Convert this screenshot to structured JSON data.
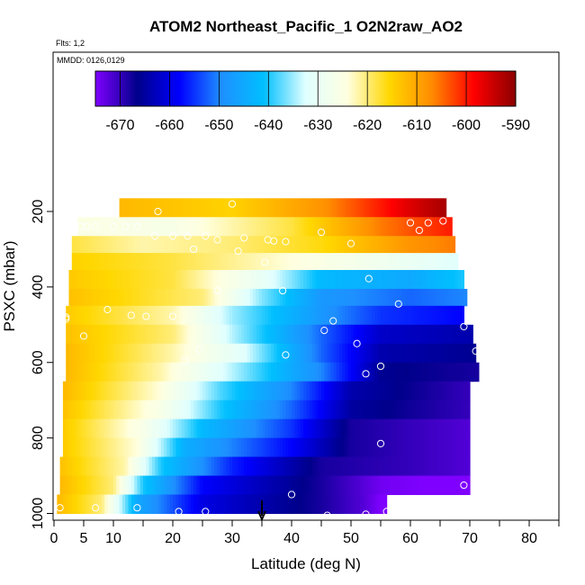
{
  "chart_data": {
    "type": "heatmap",
    "title": "ATOM2 Northeast_Pacific_1 O2N2raw_AO2",
    "flights_label": "Flts: 1,2",
    "dates_label": "MMDD: 0126,0129",
    "xlabel": "Latitude (deg N)",
    "ylabel": "PSXC (mbar)",
    "xlim": [
      0,
      85
    ],
    "ylim": [
      1000,
      120
    ],
    "y_reversed": true,
    "x_ticks": [
      0,
      5,
      10,
      20,
      30,
      40,
      50,
      60,
      70,
      80
    ],
    "y_ticks": [
      200,
      400,
      600,
      800,
      1000
    ],
    "colorbar": {
      "range": [
        -675,
        -590
      ],
      "ticks": [
        -670,
        -660,
        -650,
        -640,
        -630,
        -620,
        -610,
        -600,
        -590
      ],
      "tick_labels": [
        "-670",
        "-660",
        "-650",
        "-640",
        "-630",
        "-620",
        "-610",
        "-600",
        "-590"
      ],
      "palette": [
        "#7f00ff",
        "#00008b",
        "#0000ff",
        "#1e90ff",
        "#00bfff",
        "#e0ffff",
        "#ffffe0",
        "#ffd700",
        "#ff8c00",
        "#ff0000",
        "#8b0000"
      ]
    },
    "pressure_levels": [
      {
        "p_top": 165,
        "p_bot": 215,
        "lat_start": 11,
        "lat_end": 66,
        "profile": [
          [
            11,
            -612
          ],
          [
            30,
            -615
          ],
          [
            45,
            -608
          ],
          [
            55,
            -600
          ],
          [
            60,
            -596
          ],
          [
            66,
            -592
          ]
        ]
      },
      {
        "p_top": 215,
        "p_bot": 265,
        "lat_start": 4,
        "lat_end": 67,
        "profile": [
          [
            4,
            -625
          ],
          [
            20,
            -626
          ],
          [
            40,
            -618
          ],
          [
            55,
            -606
          ],
          [
            67,
            -600
          ]
        ]
      },
      {
        "p_top": 265,
        "p_bot": 310,
        "lat_start": 3,
        "lat_end": 67.5,
        "profile": [
          [
            3,
            -618
          ],
          [
            15,
            -622
          ],
          [
            30,
            -620
          ],
          [
            45,
            -616
          ],
          [
            60,
            -608
          ],
          [
            67.5,
            -606
          ]
        ]
      },
      {
        "p_top": 310,
        "p_bot": 355,
        "lat_start": 3,
        "lat_end": 68,
        "profile": [
          [
            3,
            -615
          ],
          [
            20,
            -618
          ],
          [
            40,
            -624
          ],
          [
            55,
            -628
          ],
          [
            68,
            -632
          ]
        ]
      },
      {
        "p_top": 355,
        "p_bot": 405,
        "lat_start": 2.5,
        "lat_end": 69,
        "profile": [
          [
            2.5,
            -614
          ],
          [
            20,
            -618
          ],
          [
            35,
            -630
          ],
          [
            45,
            -642
          ],
          [
            60,
            -645
          ],
          [
            69,
            -640
          ]
        ]
      },
      {
        "p_top": 405,
        "p_bot": 450,
        "lat_start": 2.5,
        "lat_end": 69.5,
        "profile": [
          [
            2.5,
            -613
          ],
          [
            25,
            -620
          ],
          [
            35,
            -636
          ],
          [
            45,
            -648
          ],
          [
            60,
            -652
          ],
          [
            69.5,
            -650
          ]
        ]
      },
      {
        "p_top": 450,
        "p_bot": 500,
        "lat_start": 2,
        "lat_end": 69,
        "profile": [
          [
            2,
            -614
          ],
          [
            20,
            -622
          ],
          [
            30,
            -635
          ],
          [
            45,
            -648
          ],
          [
            55,
            -655
          ],
          [
            69,
            -658
          ]
        ]
      },
      {
        "p_top": 500,
        "p_bot": 550,
        "lat_start": 2,
        "lat_end": 70.5,
        "profile": [
          [
            2,
            -613
          ],
          [
            20,
            -620
          ],
          [
            30,
            -634
          ],
          [
            45,
            -652
          ],
          [
            55,
            -662
          ],
          [
            70.5,
            -664
          ]
        ]
      },
      {
        "p_top": 550,
        "p_bot": 600,
        "lat_start": 2,
        "lat_end": 71,
        "profile": [
          [
            2,
            -612
          ],
          [
            20,
            -622
          ],
          [
            32,
            -632
          ],
          [
            45,
            -652
          ],
          [
            55,
            -664
          ],
          [
            71,
            -666
          ]
        ]
      },
      {
        "p_top": 600,
        "p_bot": 650,
        "lat_start": 2,
        "lat_end": 71.5,
        "profile": [
          [
            2,
            -612
          ],
          [
            18,
            -622
          ],
          [
            30,
            -634
          ],
          [
            45,
            -650
          ],
          [
            55,
            -666
          ],
          [
            71.5,
            -668
          ]
        ]
      },
      {
        "p_top": 650,
        "p_bot": 700,
        "lat_start": 1.5,
        "lat_end": 70,
        "profile": [
          [
            1.5,
            -612
          ],
          [
            18,
            -624
          ],
          [
            28,
            -638
          ],
          [
            40,
            -650
          ],
          [
            50,
            -664
          ],
          [
            70,
            -670
          ]
        ]
      },
      {
        "p_top": 700,
        "p_bot": 750,
        "lat_start": 1.5,
        "lat_end": 70,
        "profile": [
          [
            1.5,
            -613
          ],
          [
            18,
            -626
          ],
          [
            28,
            -640
          ],
          [
            40,
            -652
          ],
          [
            50,
            -665
          ],
          [
            70,
            -670
          ]
        ]
      },
      {
        "p_top": 750,
        "p_bot": 800,
        "lat_start": 1.5,
        "lat_end": 70,
        "profile": [
          [
            1.5,
            -614
          ],
          [
            15,
            -626
          ],
          [
            25,
            -642
          ],
          [
            40,
            -655
          ],
          [
            50,
            -668
          ],
          [
            70,
            -672
          ]
        ]
      },
      {
        "p_top": 800,
        "p_bot": 850,
        "lat_start": 1.5,
        "lat_end": 70,
        "profile": [
          [
            1.5,
            -614
          ],
          [
            14,
            -624
          ],
          [
            22,
            -644
          ],
          [
            40,
            -658
          ],
          [
            50,
            -668
          ],
          [
            70,
            -672
          ]
        ]
      },
      {
        "p_top": 850,
        "p_bot": 900,
        "lat_start": 1,
        "lat_end": 70,
        "profile": [
          [
            1,
            -613
          ],
          [
            12,
            -622
          ],
          [
            18,
            -640
          ],
          [
            30,
            -656
          ],
          [
            45,
            -668
          ],
          [
            60,
            -670
          ],
          [
            70,
            -672
          ]
        ]
      },
      {
        "p_top": 900,
        "p_bot": 950,
        "lat_start": 1,
        "lat_end": 70,
        "profile": [
          [
            1,
            -612
          ],
          [
            10,
            -620
          ],
          [
            15,
            -640
          ],
          [
            25,
            -658
          ],
          [
            45,
            -668
          ],
          [
            55,
            -674
          ],
          [
            70,
            -676
          ]
        ]
      },
      {
        "p_top": 950,
        "p_bot": 1000,
        "lat_start": 0.5,
        "lat_end": 56,
        "profile": [
          [
            0.5,
            -612
          ],
          [
            8,
            -620
          ],
          [
            14,
            -645
          ],
          [
            25,
            -660
          ],
          [
            45,
            -668
          ],
          [
            52,
            -672
          ],
          [
            56,
            -676
          ]
        ]
      }
    ],
    "sample_points": [
      {
        "x": 30,
        "y": 180
      },
      {
        "x": 17.5,
        "y": 200
      },
      {
        "x": 60,
        "y": 230
      },
      {
        "x": 63,
        "y": 230
      },
      {
        "x": 65.5,
        "y": 225
      },
      {
        "x": 61.5,
        "y": 250
      },
      {
        "x": 4.5,
        "y": 240
      },
      {
        "x": 5.5,
        "y": 240
      },
      {
        "x": 7,
        "y": 240
      },
      {
        "x": 10,
        "y": 240
      },
      {
        "x": 12,
        "y": 240
      },
      {
        "x": 14,
        "y": 240
      },
      {
        "x": 17,
        "y": 265
      },
      {
        "x": 20,
        "y": 265
      },
      {
        "x": 22.5,
        "y": 265
      },
      {
        "x": 25.5,
        "y": 265
      },
      {
        "x": 27.5,
        "y": 275
      },
      {
        "x": 32,
        "y": 270
      },
      {
        "x": 36,
        "y": 275
      },
      {
        "x": 37,
        "y": 278
      },
      {
        "x": 39,
        "y": 280
      },
      {
        "x": 45,
        "y": 255
      },
      {
        "x": 50,
        "y": 285
      },
      {
        "x": 23.5,
        "y": 300
      },
      {
        "x": 31,
        "y": 305
      },
      {
        "x": 35.5,
        "y": 335
      },
      {
        "x": 53,
        "y": 378
      },
      {
        "x": 27.5,
        "y": 410
      },
      {
        "x": 38.5,
        "y": 410
      },
      {
        "x": 58,
        "y": 445
      },
      {
        "x": 9,
        "y": 460
      },
      {
        "x": 13,
        "y": 475
      },
      {
        "x": 15.5,
        "y": 478
      },
      {
        "x": 20,
        "y": 478
      },
      {
        "x": 2,
        "y": 480
      },
      {
        "x": 2,
        "y": 485
      },
      {
        "x": 47,
        "y": 490
      },
      {
        "x": 69,
        "y": 505
      },
      {
        "x": 45.5,
        "y": 515
      },
      {
        "x": 5,
        "y": 530
      },
      {
        "x": 51,
        "y": 550
      },
      {
        "x": 24.5,
        "y": 565
      },
      {
        "x": 71,
        "y": 570
      },
      {
        "x": 39,
        "y": 580
      },
      {
        "x": 22,
        "y": 595
      },
      {
        "x": 55,
        "y": 610
      },
      {
        "x": 52.5,
        "y": 630
      },
      {
        "x": 55,
        "y": 815
      },
      {
        "x": 69,
        "y": 925
      },
      {
        "x": 40,
        "y": 950
      },
      {
        "x": 1,
        "y": 985
      },
      {
        "x": 7,
        "y": 985
      },
      {
        "x": 14,
        "y": 985
      },
      {
        "x": 21,
        "y": 995
      },
      {
        "x": 25.5,
        "y": 995
      },
      {
        "x": 46,
        "y": 1005
      },
      {
        "x": 52.5,
        "y": 1002
      },
      {
        "x": 56,
        "y": 995
      }
    ],
    "marker": {
      "x": 35,
      "direction": "down"
    }
  }
}
